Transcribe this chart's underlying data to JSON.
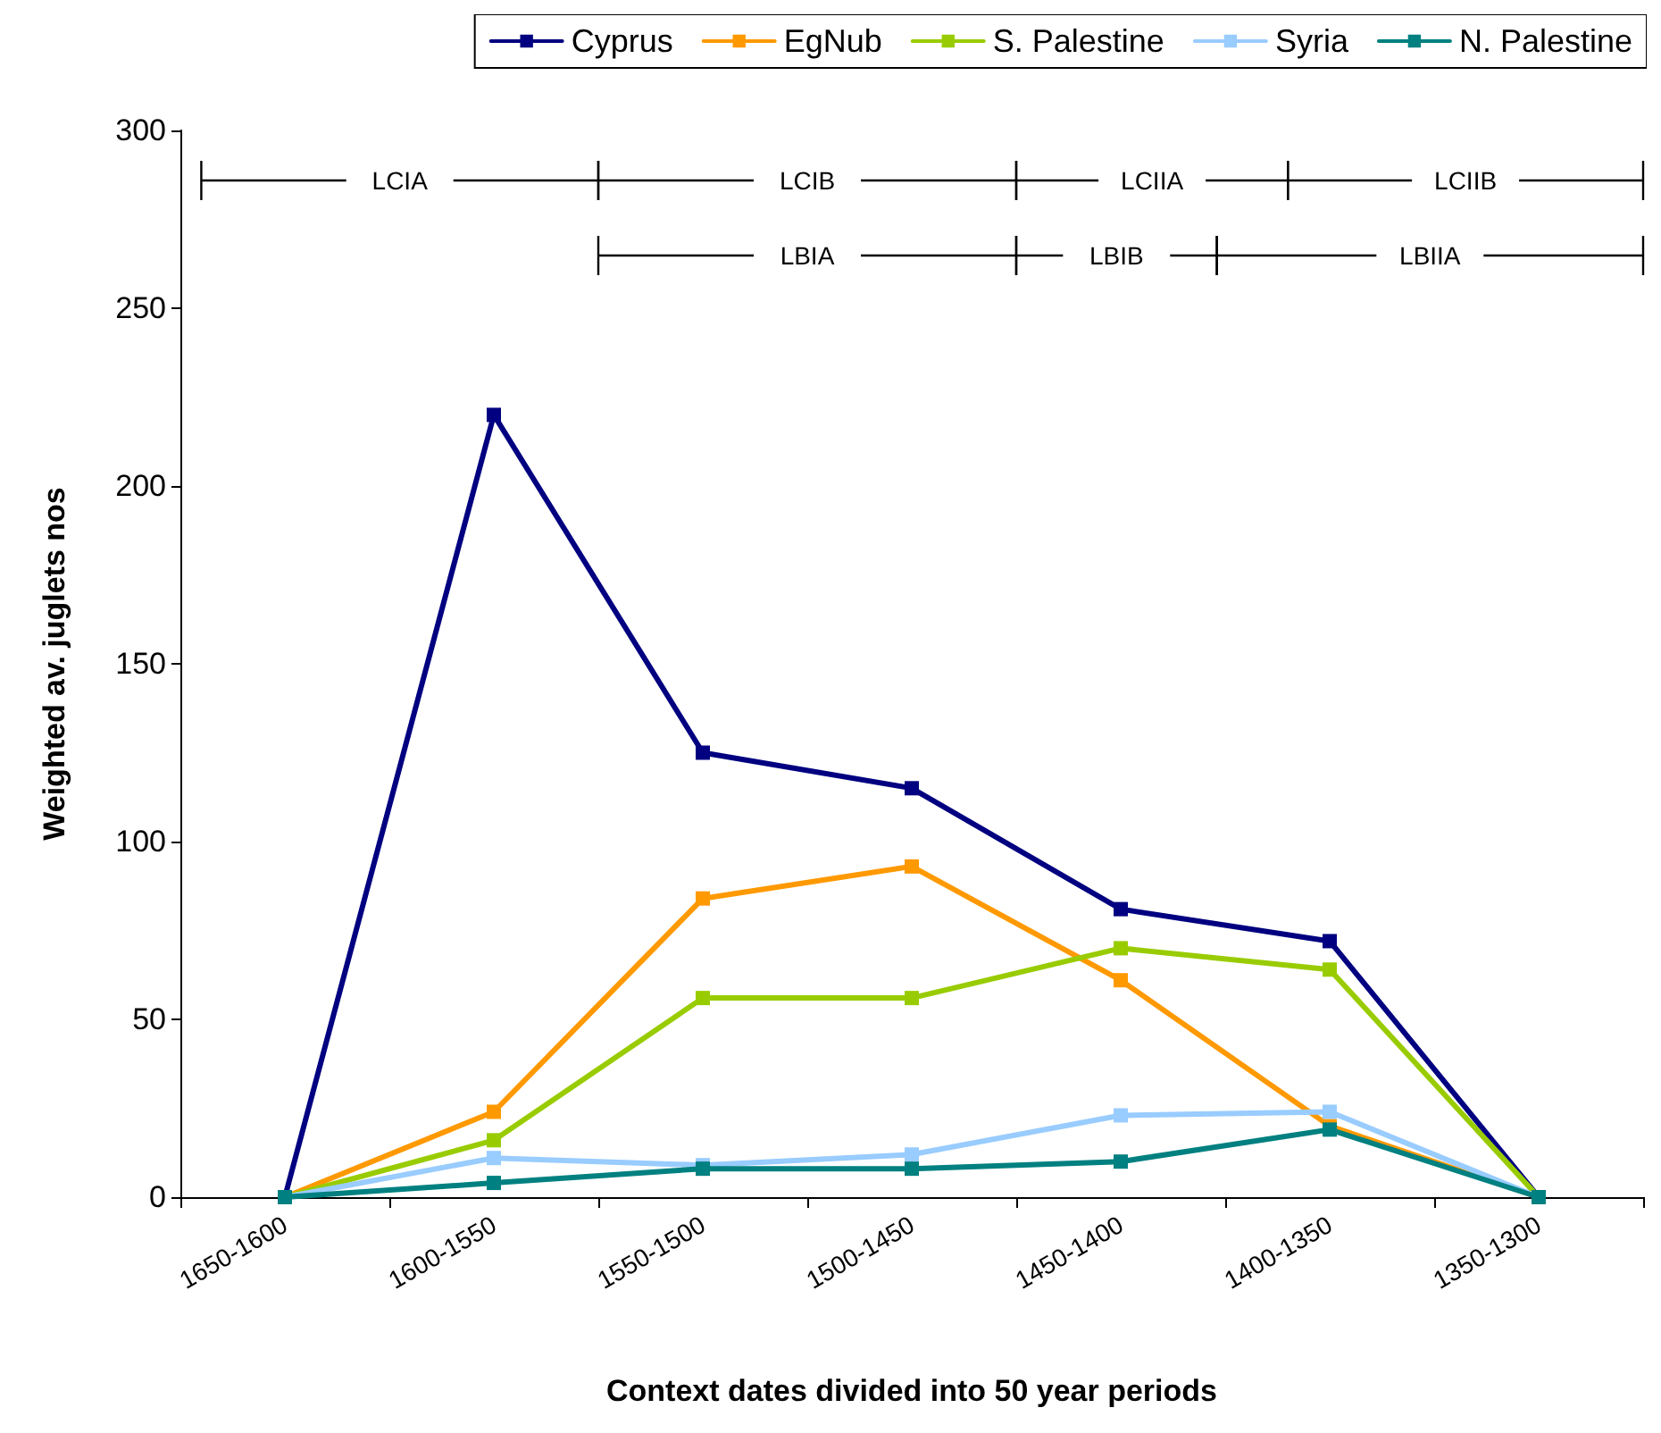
{
  "chart_data": {
    "type": "line",
    "xlabel": "Context dates divided into 50 year periods",
    "ylabel": "Weighted av. juglets nos",
    "categories": [
      "1650-1600",
      "1600-1550",
      "1550-1500",
      "1500-1450",
      "1450-1400",
      "1400-1350",
      "1350-1300"
    ],
    "ylim": [
      0,
      300
    ],
    "yticks": [
      0,
      50,
      100,
      150,
      200,
      250,
      300
    ],
    "series": [
      {
        "name": "Cyprus",
        "color": "#000080",
        "values": [
          0,
          220,
          125,
          115,
          81,
          72,
          0
        ]
      },
      {
        "name": "EgNub",
        "color": "#ff9900",
        "values": [
          0,
          24,
          84,
          93,
          61,
          20,
          0
        ]
      },
      {
        "name": "S. Palestine",
        "color": "#99cc00",
        "values": [
          0,
          16,
          56,
          56,
          70,
          64,
          0
        ]
      },
      {
        "name": "Syria",
        "color": "#99ccff",
        "values": [
          0,
          11,
          9,
          12,
          23,
          24,
          0
        ]
      },
      {
        "name": "N. Palestine",
        "color": "#008080",
        "values": [
          0,
          4,
          8,
          8,
          10,
          19,
          0
        ]
      }
    ],
    "annotations": [
      "LCIA",
      "LCIB",
      "LCIIA",
      "LCIIB",
      "LBIA",
      "LBIB",
      "LBIIA"
    ],
    "marker": "square",
    "line_style": "solid",
    "legend": "top right"
  }
}
